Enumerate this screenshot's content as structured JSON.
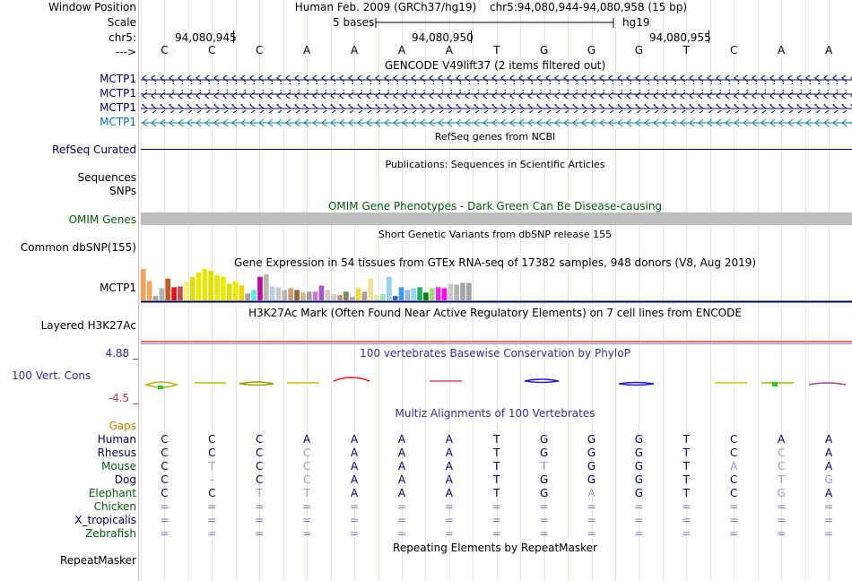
{
  "header": {
    "window_position_label": "Window Position",
    "scale_label": "Scale",
    "chr_label": "chr5:",
    "strand_label": "--->",
    "assembly": "Human Feb. 2009 (GRCh37/hg19)",
    "position": "chr5:94,080,944-94,080,958 (15 bp)",
    "scale_text": "5 bases",
    "db": "hg19",
    "ticks": [
      "94,080,945",
      "94,080,950",
      "94,080,955"
    ]
  },
  "sequence": [
    "C",
    "C",
    "C",
    "A",
    "A",
    "A",
    "A",
    "T",
    "G",
    "G",
    "G",
    "T",
    "C",
    "A",
    "A"
  ],
  "tracks": {
    "gencode": {
      "title": "GENCODE V49lift37 (2 items filtered out)",
      "items": [
        "MCTP1",
        "MCTP1",
        "MCTP1",
        "MCTP1"
      ]
    },
    "refseq": {
      "title": "RefSeq genes from NCBI",
      "label": "RefSeq Curated"
    },
    "publications": {
      "title": "Publications: Sequences in Scientific Articles",
      "label1": "Sequences",
      "label2": "SNPs"
    },
    "omim": {
      "title": "OMIM Gene Phenotypes - Dark Green Can Be Disease-causing",
      "label": "OMIM Genes"
    },
    "dbsnp": {
      "title": "Short Genetic Variants from dbSNP release 155",
      "label": "Common dbSNP(155)"
    },
    "gtex": {
      "title": "Gene Expression in 54 tissues from GTEx RNA-seq of 17382 samples, 948 donors (V8, Aug 2019)",
      "label": "MCTP1"
    },
    "h3k27ac": {
      "title": "H3K27Ac Mark (Often Found Near Active Regulatory Elements) on 7 cell lines from ENCODE",
      "label": "Layered H3K27Ac"
    },
    "phylop": {
      "title": "100 vertebrates Basewise Conservation by PhyloP",
      "label": "100 Vert. Cons",
      "max": "4.88 _",
      "min": "-4.5 _"
    },
    "multiz": {
      "title": "Multiz Alignments of 100 Vertebrates",
      "gaps_label": "Gaps",
      "species": [
        {
          "name": "Human",
          "bases": [
            "C",
            "C",
            "C",
            "A",
            "A",
            "A",
            "A",
            "T",
            "G",
            "G",
            "G",
            "T",
            "C",
            "A",
            "A"
          ]
        },
        {
          "name": "Rhesus",
          "bases": [
            "C",
            "C",
            "C",
            "C",
            "A",
            "A",
            "A",
            "T",
            "G",
            "G",
            "G",
            "T",
            "C",
            "C",
            "A"
          ]
        },
        {
          "name": "Mouse",
          "bases": [
            "C",
            "T",
            "C",
            "C",
            "A",
            "A",
            "A",
            "T",
            "T",
            "G",
            "G",
            "T",
            "A",
            "C",
            "A"
          ]
        },
        {
          "name": "Dog",
          "bases": [
            "C",
            "-",
            "C",
            "C",
            "A",
            "A",
            "A",
            "T",
            "G",
            "G",
            "G",
            "T",
            "C",
            "T",
            "G"
          ]
        },
        {
          "name": "Elephant",
          "bases": [
            "C",
            "C",
            "T",
            "T",
            "A",
            "A",
            "A",
            "T",
            "G",
            "A",
            "G",
            "T",
            "C",
            "G",
            "A"
          ]
        },
        {
          "name": "Chicken",
          "bases": [
            "=",
            "=",
            "=",
            "=",
            "=",
            "=",
            "=",
            "=",
            "=",
            "=",
            "=",
            "=",
            "=",
            "=",
            "="
          ]
        },
        {
          "name": "X_tropicalis",
          "bases": [
            "=",
            "=",
            "=",
            "=",
            "=",
            "=",
            "=",
            "=",
            "=",
            "=",
            "=",
            "=",
            "=",
            "=",
            "="
          ]
        },
        {
          "name": "Zebrafish",
          "bases": [
            "=",
            "=",
            "=",
            "=",
            "=",
            "=",
            "=",
            "=",
            "=",
            "=",
            "=",
            "=",
            "=",
            "=",
            "="
          ]
        }
      ]
    },
    "repeatmasker": {
      "title": "Repeating Elements by RepeatMasker",
      "label": "RepeatMasker"
    }
  },
  "gtex_values": [
    36,
    22,
    5,
    14,
    25,
    15,
    16,
    22,
    27,
    32,
    36,
    34,
    29,
    27,
    19,
    22,
    17,
    8,
    12,
    27,
    30,
    16,
    15,
    12,
    14,
    12,
    9,
    10,
    10,
    17,
    12,
    7,
    6,
    10,
    4,
    14,
    10,
    25,
    6,
    7,
    27,
    5,
    15,
    12,
    14,
    15,
    9,
    14,
    15,
    14,
    19,
    18,
    20,
    20
  ],
  "gtex_colors": [
    "#f4a25c",
    "#f5a55b",
    "#a7a7a7",
    "#b3b3b3",
    "#b85f2a",
    "#e21010",
    "#c34e4e",
    "#f5f17b",
    "#dede10",
    "#e9e900",
    "#e5e500",
    "#e4dd00",
    "#e8e800",
    "#eaea00",
    "#dcdc00",
    "#eaea00",
    "#ead200",
    "#a4a4a4",
    "#5ee2e8",
    "#b90aa5",
    "#bdb9b1",
    "#b5d1e6",
    "#c7c7c7",
    "#b6b6b6",
    "#c9a07a",
    "#8c6a3c",
    "#cdb88a",
    "#a4a0a0",
    "#c879c5",
    "#a855c5",
    "#d7ccc0",
    "#d1cdc4",
    "#bc9470",
    "#7c8a65",
    "#bca4a0",
    "#eeda3a",
    "#ad9e9e",
    "#f1e19a",
    "#d9ea9d",
    "#9ee0b8",
    "#9acfe9",
    "#3b5bdd",
    "#3d9be8",
    "#a2b6e6",
    "#9ad7e8",
    "#1daf5c",
    "#06850a",
    "#a3dc7b",
    "#e628e1",
    "#ff00ff",
    "#c9c9c9",
    "#b4b4b4",
    "#a4a4a4",
    "#a4a4a4"
  ]
}
